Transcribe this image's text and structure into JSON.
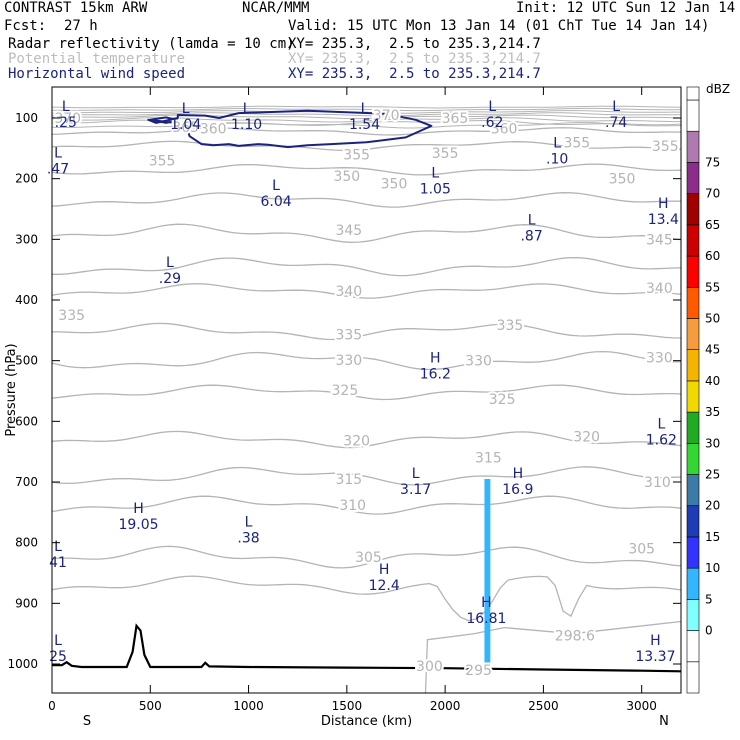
{
  "header": {
    "model": "CONTRAST 15km ARW",
    "org": "NCAR/MMM",
    "init": "Init: 12 UTC Sun 12 Jan 14",
    "fcst_label": "Fcst:",
    "fcst_value": "27 h",
    "valid": "Valid: 15 UTC Mon 13 Jan 14 (01 ChT Tue 14 Jan 14)",
    "fields": [
      {
        "name": "Radar reflectivity (lamda = 10 cm)",
        "xy": "XY= 235.3,  2.5 to 235.3,214.7",
        "color": "#000000"
      },
      {
        "name": "Potential temperature",
        "xy": "XY= 235.3,  2.5 to 235.3,214.7",
        "color": "#bdbdbd"
      },
      {
        "name": "Horizontal wind speed",
        "xy": "XY= 235.3,  2.5 to 235.3,214.7",
        "color": "#1a237e"
      }
    ]
  },
  "chart_data": {
    "type": "cross-section",
    "xlabel": "Distance (km)",
    "ylabel": "Pressure (hPa)",
    "xlim": [
      0,
      3200
    ],
    "ylim": [
      1050,
      75
    ],
    "x_ticks": [
      0,
      500,
      1000,
      1500,
      2000,
      2500,
      3000
    ],
    "y_ticks": [
      100,
      200,
      300,
      400,
      500,
      600,
      700,
      800,
      900,
      1000
    ],
    "left_end": "S",
    "right_end": "N",
    "theta_labels": [
      {
        "text": "370",
        "x": 80,
        "p": 100
      },
      {
        "text": "365",
        "x": 680,
        "p": 115
      },
      {
        "text": "370",
        "x": 1700,
        "p": 95
      },
      {
        "text": "365",
        "x": 2050,
        "p": 100
      },
      {
        "text": "360",
        "x": 2300,
        "p": 117
      },
      {
        "text": "355",
        "x": 2670,
        "p": 140
      },
      {
        "text": "355",
        "x": 3120,
        "p": 146
      },
      {
        "text": "360",
        "x": 820,
        "p": 117
      },
      {
        "text": "355",
        "x": 560,
        "p": 170
      },
      {
        "text": "355",
        "x": 1550,
        "p": 160
      },
      {
        "text": "355",
        "x": 2000,
        "p": 158
      },
      {
        "text": "350",
        "x": 1500,
        "p": 196
      },
      {
        "text": "350",
        "x": 1740,
        "p": 208
      },
      {
        "text": "350",
        "x": 2900,
        "p": 200
      },
      {
        "text": "345",
        "x": 1510,
        "p": 285
      },
      {
        "text": "345",
        "x": 3090,
        "p": 300
      },
      {
        "text": "340",
        "x": 1510,
        "p": 385
      },
      {
        "text": "340",
        "x": 3090,
        "p": 380
      },
      {
        "text": "335",
        "x": 100,
        "p": 425
      },
      {
        "text": "335",
        "x": 1510,
        "p": 457
      },
      {
        "text": "335",
        "x": 2330,
        "p": 441
      },
      {
        "text": "330",
        "x": 1510,
        "p": 499
      },
      {
        "text": "330",
        "x": 2170,
        "p": 500
      },
      {
        "text": "330",
        "x": 3090,
        "p": 495
      },
      {
        "text": "325",
        "x": 1490,
        "p": 548
      },
      {
        "text": "325",
        "x": 2290,
        "p": 563
      },
      {
        "text": "320",
        "x": 1550,
        "p": 632
      },
      {
        "text": "320",
        "x": 2720,
        "p": 625
      },
      {
        "text": "315",
        "x": 1510,
        "p": 695
      },
      {
        "text": "315",
        "x": 2220,
        "p": 660
      },
      {
        "text": "310",
        "x": 1530,
        "p": 738
      },
      {
        "text": "310",
        "x": 3080,
        "p": 700
      },
      {
        "text": "305",
        "x": 1610,
        "p": 824
      },
      {
        "text": "305",
        "x": 3000,
        "p": 810
      },
      {
        "text": "300",
        "x": 1920,
        "p": 1003
      },
      {
        "text": "298.6",
        "x": 2660,
        "p": 953
      },
      {
        "text": "295",
        "x": 2170,
        "p": 1010
      }
    ],
    "extrema": [
      {
        "kind": "L",
        "value": ".25",
        "x": 70,
        "p": 95
      },
      {
        "kind": "L",
        "value": "1.04",
        "x": 680,
        "p": 98
      },
      {
        "kind": "L",
        "value": "1.10",
        "x": 990,
        "p": 98
      },
      {
        "kind": "L",
        "value": "1.54",
        "x": 1590,
        "p": 98
      },
      {
        "kind": "L",
        "value": ".62",
        "x": 2240,
        "p": 95
      },
      {
        "kind": "L",
        "value": ".74",
        "x": 2870,
        "p": 95
      },
      {
        "kind": "L",
        "value": ".10",
        "x": 2570,
        "p": 155
      },
      {
        "kind": "L",
        "value": ".47",
        "x": 30,
        "p": 172
      },
      {
        "kind": "L",
        "value": "6.04",
        "x": 1140,
        "p": 225
      },
      {
        "kind": "L",
        "value": "1.05",
        "x": 1950,
        "p": 205
      },
      {
        "kind": "H",
        "value": "13.4",
        "x": 3110,
        "p": 255
      },
      {
        "kind": "L",
        "value": ".87",
        "x": 2440,
        "p": 282
      },
      {
        "kind": "L",
        "value": ".29",
        "x": 600,
        "p": 352
      },
      {
        "kind": "H",
        "value": "16.2",
        "x": 1950,
        "p": 510
      },
      {
        "kind": "L",
        "value": "1.62",
        "x": 3100,
        "p": 618
      },
      {
        "kind": "L",
        "value": "3.17",
        "x": 1850,
        "p": 700
      },
      {
        "kind": "H",
        "value": "16.9",
        "x": 2370,
        "p": 700
      },
      {
        "kind": "H",
        "value": "19.05",
        "x": 440,
        "p": 758
      },
      {
        "kind": "L",
        "value": ".38",
        "x": 1000,
        "p": 780
      },
      {
        "kind": "L",
        "value": "41",
        "x": 20,
        "p": 820
      },
      {
        "kind": "H",
        "value": "12.4",
        "x": 1690,
        "p": 858
      },
      {
        "kind": "H",
        "value": "16.81",
        "x": 2210,
        "p": 913
      },
      {
        "kind": "L",
        "value": "25",
        "x": 20,
        "p": 975
      },
      {
        "kind": "H",
        "value": "13.37",
        "x": 3070,
        "p": 975
      }
    ],
    "reflectivity_column": {
      "x_left": 2200,
      "x_right": 2230,
      "p_top": 695,
      "p_bottom": 1010,
      "dbz": 5
    },
    "wind_contour": {
      "level_label": "1.54",
      "points": [
        [
          490,
          103
        ],
        [
          530,
          108
        ],
        [
          640,
          100
        ],
        [
          640,
          95
        ],
        [
          780,
          96
        ],
        [
          850,
          100
        ],
        [
          950,
          92
        ],
        [
          1300,
          88
        ],
        [
          1700,
          93
        ],
        [
          1850,
          103
        ],
        [
          1930,
          113
        ],
        [
          1800,
          132
        ],
        [
          1600,
          140
        ],
        [
          1420,
          143
        ],
        [
          1300,
          145
        ],
        [
          1200,
          148
        ],
        [
          1100,
          144
        ],
        [
          1050,
          143
        ],
        [
          950,
          146
        ],
        [
          900,
          143
        ],
        [
          820,
          145
        ],
        [
          760,
          143
        ],
        [
          700,
          130
        ],
        [
          680,
          110
        ]
      ],
      "small_loop": [
        [
          500,
          103
        ],
        [
          580,
          99
        ],
        [
          640,
          104
        ],
        [
          580,
          108
        ]
      ]
    },
    "terrain": [
      [
        0,
        1002
      ],
      [
        50,
        1002
      ],
      [
        75,
        997
      ],
      [
        100,
        1003
      ],
      [
        150,
        1005
      ],
      [
        380,
        1005
      ],
      [
        410,
        980
      ],
      [
        430,
        937
      ],
      [
        450,
        945
      ],
      [
        470,
        985
      ],
      [
        500,
        1005
      ],
      [
        760,
        1005
      ],
      [
        780,
        998
      ],
      [
        800,
        1004
      ],
      [
        1000,
        1005
      ],
      [
        1500,
        1006
      ],
      [
        2000,
        1007
      ],
      [
        2500,
        1009
      ],
      [
        3000,
        1011
      ],
      [
        3200,
        1012
      ]
    ],
    "colorbar": {
      "title": "dBZ",
      "levels": [
        -5,
        0,
        5,
        10,
        15,
        20,
        25,
        30,
        35,
        40,
        45,
        50,
        55,
        60,
        65,
        70,
        75,
        80
      ],
      "tick_labels": [
        "0",
        "5",
        "10",
        "15",
        "20",
        "25",
        "30",
        "35",
        "40",
        "45",
        "50",
        "55",
        "60",
        "65",
        "70",
        "75"
      ],
      "colors": [
        "#ffffff",
        "#ffffff",
        "#80ffff",
        "#33b5ff",
        "#3333ff",
        "#1e3cb4",
        "#3c7aa8",
        "#33d633",
        "#22aa22",
        "#f0d800",
        "#f5b400",
        "#f59d3d",
        "#ff5a00",
        "#ff0000",
        "#cc0000",
        "#a00000",
        "#8b2e8b",
        "#b07ab0",
        "#ffffff"
      ]
    }
  }
}
